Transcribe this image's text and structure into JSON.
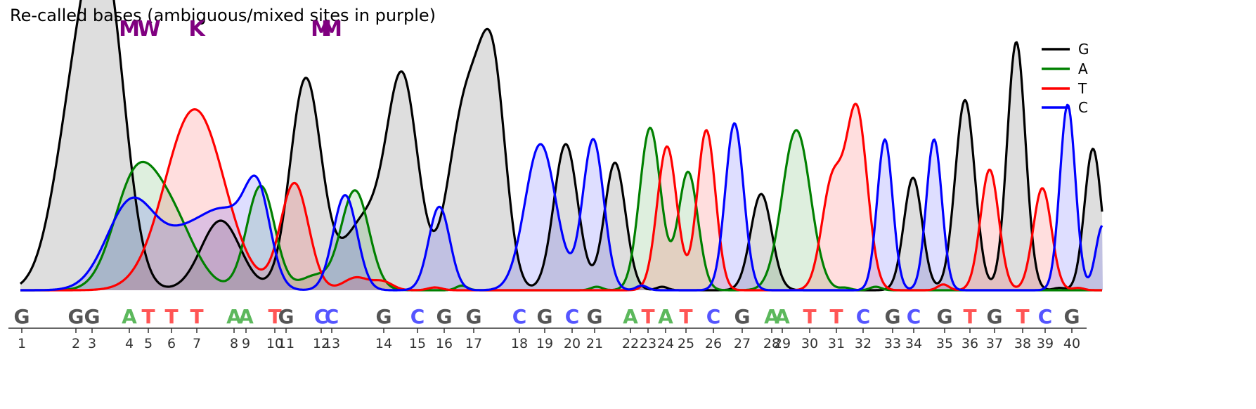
{
  "chart_data": {
    "type": "area",
    "title": "Re-called bases (ambiguous/mixed sites in purple)",
    "xlabel": "",
    "ylabel": "",
    "grid": false,
    "legend_position": "top-right",
    "legend": [
      "G",
      "A",
      "T",
      "C"
    ],
    "colors": {
      "G": "#000000",
      "A": "#008000",
      "T": "#ff0000",
      "C": "#0000ff",
      "ambiguous": "#800080"
    },
    "call_colors": {
      "G": "#555555",
      "A": "#5cb85c",
      "T": "#ff5555",
      "C": "#5555ff"
    },
    "positions": [
      1,
      2,
      3,
      4,
      5,
      6,
      7,
      8,
      9,
      10,
      11,
      12,
      13,
      14,
      15,
      16,
      17,
      18,
      19,
      20,
      21,
      22,
      23,
      24,
      25,
      26,
      27,
      28,
      29,
      30,
      31,
      32,
      33,
      34,
      35,
      36,
      37,
      38,
      39,
      40
    ],
    "calls": [
      "G",
      "G",
      "G",
      "A",
      "T",
      "T",
      "T",
      "A",
      "A",
      "T",
      "G",
      "C",
      "C",
      "G",
      "C",
      "G",
      "G",
      "C",
      "G",
      "C",
      "G",
      "A",
      "T",
      "A",
      "T",
      "C",
      "G",
      "A",
      "A",
      "T",
      "T",
      "C",
      "G",
      "C",
      "G",
      "T",
      "G",
      "T",
      "C",
      "G"
    ],
    "ambiguous_sites": [
      {
        "position": 4,
        "code": "M"
      },
      {
        "position": 5,
        "code": "W"
      },
      {
        "position": 7,
        "code": "K"
      },
      {
        "position": 12,
        "code": "M"
      },
      {
        "position": 13,
        "code": "M"
      }
    ],
    "x_range": [
      0,
      1540
    ],
    "y_range": [
      0,
      1.08
    ],
    "series": [
      {
        "name": "G",
        "color": "#000000",
        "peaks": [
          {
            "x": 75,
            "h": 0.63,
            "w": 30
          },
          {
            "x": 110,
            "h": 0.74,
            "w": 28
          },
          {
            "x": 130,
            "h": 0.63,
            "w": 26
          },
          {
            "x": 285,
            "h": 0.3,
            "w": 28
          },
          {
            "x": 406,
            "h": 0.91,
            "w": 22
          },
          {
            "x": 490,
            "h": 0.3,
            "w": 30
          },
          {
            "x": 544,
            "h": 0.88,
            "w": 22
          },
          {
            "x": 625,
            "h": 0.52,
            "w": 22
          },
          {
            "x": 650,
            "h": 0.46,
            "w": 22
          },
          {
            "x": 674,
            "h": 0.75,
            "w": 18
          },
          {
            "x": 776,
            "h": 0.63,
            "w": 17
          },
          {
            "x": 846,
            "h": 0.55,
            "w": 15
          },
          {
            "x": 913,
            "h": 0.015,
            "w": 8
          },
          {
            "x": 1054,
            "h": 0.415,
            "w": 15
          },
          {
            "x": 1270,
            "h": 0.485,
            "w": 13
          },
          {
            "x": 1344,
            "h": 0.82,
            "w": 14
          },
          {
            "x": 1417,
            "h": 1.07,
            "w": 13
          },
          {
            "x": 1478,
            "h": 0.01,
            "w": 8
          },
          {
            "x": 1526,
            "h": 0.61,
            "w": 12
          }
        ]
      },
      {
        "name": "A",
        "color": "#008000",
        "peaks": [
          {
            "x": 160,
            "h": 0.4,
            "w": 30
          },
          {
            "x": 210,
            "h": 0.33,
            "w": 35
          },
          {
            "x": 342,
            "h": 0.45,
            "w": 20
          },
          {
            "x": 418,
            "h": 0.06,
            "w": 20
          },
          {
            "x": 476,
            "h": 0.43,
            "w": 20
          },
          {
            "x": 628,
            "h": 0.02,
            "w": 8
          },
          {
            "x": 820,
            "h": 0.015,
            "w": 8
          },
          {
            "x": 896,
            "h": 0.7,
            "w": 15
          },
          {
            "x": 950,
            "h": 0.51,
            "w": 14
          },
          {
            "x": 1104,
            "h": 0.69,
            "w": 20
          },
          {
            "x": 1174,
            "h": 0.01,
            "w": 8
          },
          {
            "x": 1217,
            "h": 0.015,
            "w": 8
          }
        ]
      },
      {
        "name": "T",
        "color": "#ff0000",
        "peaks": [
          {
            "x": 248,
            "h": 0.78,
            "w": 42
          },
          {
            "x": 390,
            "h": 0.46,
            "w": 20
          },
          {
            "x": 478,
            "h": 0.055,
            "w": 18
          },
          {
            "x": 516,
            "h": 0.035,
            "w": 14
          },
          {
            "x": 590,
            "h": 0.012,
            "w": 10
          },
          {
            "x": 920,
            "h": 0.62,
            "w": 14
          },
          {
            "x": 976,
            "h": 0.69,
            "w": 13
          },
          {
            "x": 1155,
            "h": 0.46,
            "w": 15
          },
          {
            "x": 1190,
            "h": 0.77,
            "w": 15
          },
          {
            "x": 1313,
            "h": 0.025,
            "w": 8
          },
          {
            "x": 1379,
            "h": 0.52,
            "w": 13
          },
          {
            "x": 1454,
            "h": 0.44,
            "w": 13
          },
          {
            "x": 1505,
            "h": 0.01,
            "w": 8
          }
        ]
      },
      {
        "name": "C",
        "color": "#0000ff",
        "peaks": [
          {
            "x": 158,
            "h": 0.38,
            "w": 35
          },
          {
            "x": 245,
            "h": 0.24,
            "w": 38
          },
          {
            "x": 300,
            "h": 0.24,
            "w": 30
          },
          {
            "x": 338,
            "h": 0.36,
            "w": 18
          },
          {
            "x": 462,
            "h": 0.41,
            "w": 17
          },
          {
            "x": 596,
            "h": 0.36,
            "w": 15
          },
          {
            "x": 740,
            "h": 0.63,
            "w": 22
          },
          {
            "x": 815,
            "h": 0.65,
            "w": 15
          },
          {
            "x": 884,
            "h": 0.02,
            "w": 8
          },
          {
            "x": 1016,
            "h": 0.72,
            "w": 13
          },
          {
            "x": 1230,
            "h": 0.65,
            "w": 11
          },
          {
            "x": 1300,
            "h": 0.65,
            "w": 11
          },
          {
            "x": 1490,
            "h": 0.8,
            "w": 11
          },
          {
            "x": 1540,
            "h": 0.28,
            "w": 10
          }
        ]
      }
    ],
    "call_x": [
      31,
      108,
      131,
      184,
      211,
      244,
      280,
      333,
      350,
      391,
      407,
      457,
      472,
      546,
      594,
      632,
      674,
      739,
      775,
      814,
      846,
      897,
      922,
      947,
      976,
      1015,
      1056,
      1098,
      1113,
      1152,
      1190,
      1228,
      1270,
      1300,
      1344,
      1380,
      1415,
      1455,
      1487,
      1525
    ],
    "iupac_x": [
      184,
      212,
      280,
      457,
      472
    ]
  }
}
